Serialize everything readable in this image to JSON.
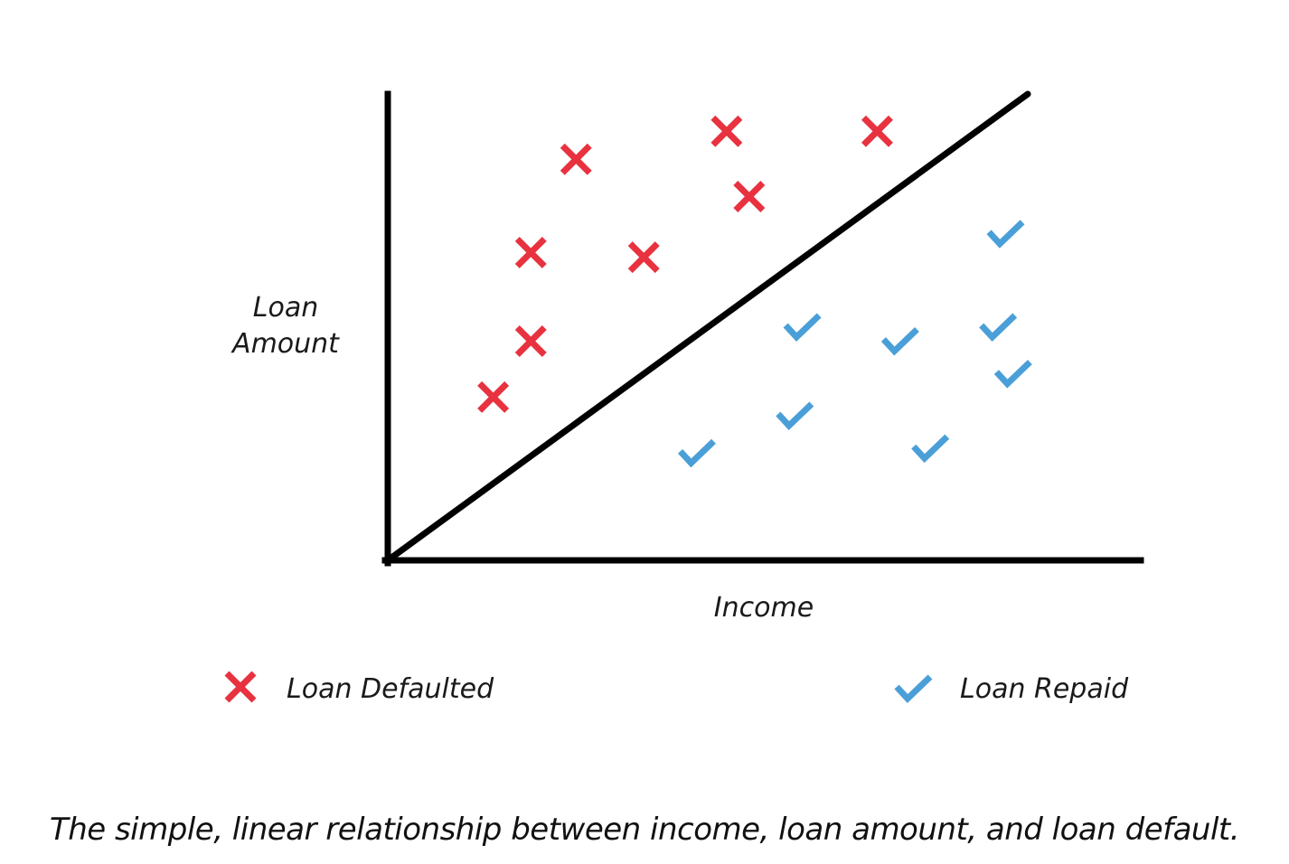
{
  "chart_data": {
    "type": "scatter",
    "xlabel": "Income",
    "ylabel_lines": [
      "Loan",
      "Amount"
    ],
    "xlim": [
      0,
      100
    ],
    "ylim": [
      0,
      100
    ],
    "grid": false,
    "legend_placement": "bottom",
    "boundary_line": {
      "from": [
        0,
        0
      ],
      "to": [
        85,
        100
      ]
    },
    "series": [
      {
        "name": "Loan Defaulted",
        "marker": "cross",
        "color": "#e8323f",
        "points": [
          {
            "x": 14,
            "y": 35
          },
          {
            "x": 19,
            "y": 47
          },
          {
            "x": 19,
            "y": 66
          },
          {
            "x": 25,
            "y": 86
          },
          {
            "x": 34,
            "y": 65
          },
          {
            "x": 45,
            "y": 92
          },
          {
            "x": 48,
            "y": 78
          },
          {
            "x": 65,
            "y": 92
          }
        ]
      },
      {
        "name": "Loan Repaid",
        "marker": "check",
        "color": "#4a9fd8",
        "points": [
          {
            "x": 41,
            "y": 23
          },
          {
            "x": 54,
            "y": 31
          },
          {
            "x": 55,
            "y": 50
          },
          {
            "x": 68,
            "y": 47
          },
          {
            "x": 72,
            "y": 24
          },
          {
            "x": 81,
            "y": 50
          },
          {
            "x": 83,
            "y": 40
          },
          {
            "x": 82,
            "y": 70
          }
        ]
      }
    ]
  },
  "caption": "The simple, linear relationship between income, loan amount, and loan default."
}
